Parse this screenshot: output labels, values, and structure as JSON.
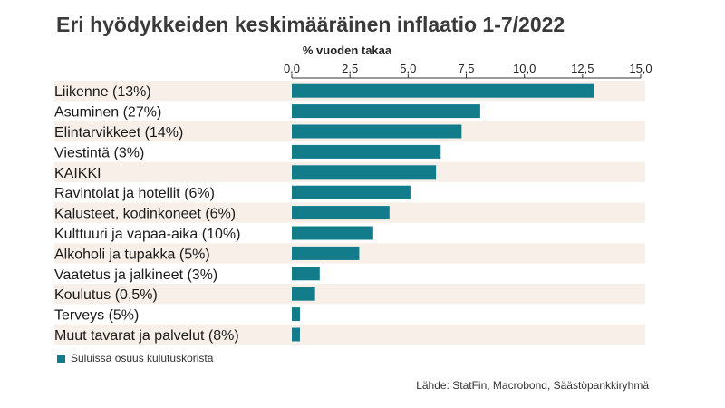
{
  "title": "Eri hyödykkeiden keskimääräinen inflaatio 1-7/2022",
  "legend_text": "Suluissa osuus kulutuskorista",
  "source": "Lähde: StatFin, Macrobond, Säästöpankkiryhmä",
  "colors": {
    "bar": "#127c8a",
    "band": "#f8f0e8",
    "axis": "#333333"
  },
  "chart_data": {
    "type": "bar",
    "orientation": "horizontal",
    "title": "Eri hyödykkeiden keskimääräinen inflaatio 1-7/2022",
    "xlabel": "% vuoden takaa",
    "xlim": [
      0,
      15
    ],
    "tick_labels": [
      "0,0",
      "2,5",
      "5,0",
      "7,5",
      "10,0",
      "12,5",
      "15,0"
    ],
    "grid": false,
    "categories": [
      "Liikenne (13%)",
      "Asuminen (27%)",
      "Elintarvikkeet (14%)",
      "Viestintä (3%)",
      "KAIKKI",
      "Ravintolat ja hotellit (6%)",
      "Kalusteet, kodinkoneet (6%)",
      "Kulttuuri ja vapaa-aika (10%)",
      "Alkoholi ja tupakka (5%)",
      "Vaatetus ja jalkineet (3%)",
      "Koulutus (0,5%)",
      "Terveys (5%)",
      "Muut tavarat ja palvelut (8%)"
    ],
    "values": [
      13.0,
      8.1,
      7.3,
      6.4,
      6.2,
      5.1,
      4.2,
      3.5,
      2.9,
      1.2,
      1.0,
      0.35,
      0.35
    ]
  }
}
